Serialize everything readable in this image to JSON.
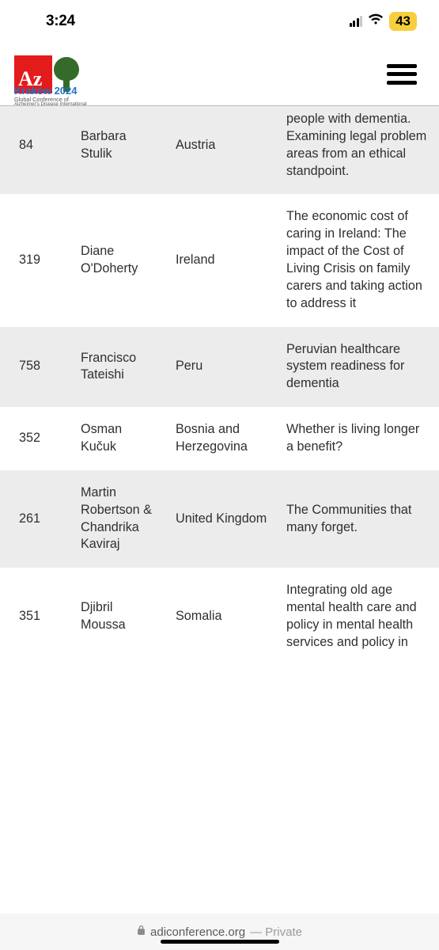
{
  "status": {
    "time": "3:24",
    "battery": "43"
  },
  "logo": {
    "az": "Az",
    "city_year": "Kraków 2024",
    "line2": "Global Conference of",
    "line3": "Alzheimer's Disease International"
  },
  "rows": [
    {
      "id": "84",
      "name": "Barbara Stulik",
      "country": "Austria",
      "title": "people with dementia. Examining legal problem areas from an ethical standpoint."
    },
    {
      "id": "319",
      "name": "Diane O'Doherty",
      "country": "Ireland",
      "title": "The economic cost of caring in Ireland: The impact of the Cost of Living Crisis on family carers and taking action to address it"
    },
    {
      "id": "758",
      "name": "Francisco Tateishi",
      "country": "Peru",
      "title": "Peruvian healthcare system readiness for dementia"
    },
    {
      "id": "352",
      "name": "Osman Kučuk",
      "country": "Bosnia and Herzegovina",
      "title": "Whether is living longer a benefit?"
    },
    {
      "id": "261",
      "name": "Martin Robertson & Chandrika Kaviraj",
      "country": "United Kingdom",
      "title": "The Communities that many forget."
    },
    {
      "id": "351",
      "name": "Djibril Moussa",
      "country": "Somalia",
      "title": "Integrating old age mental health care and policy in mental health services and policy in"
    }
  ],
  "browser": {
    "domain": "adiconference.org",
    "mode": "— Private"
  }
}
